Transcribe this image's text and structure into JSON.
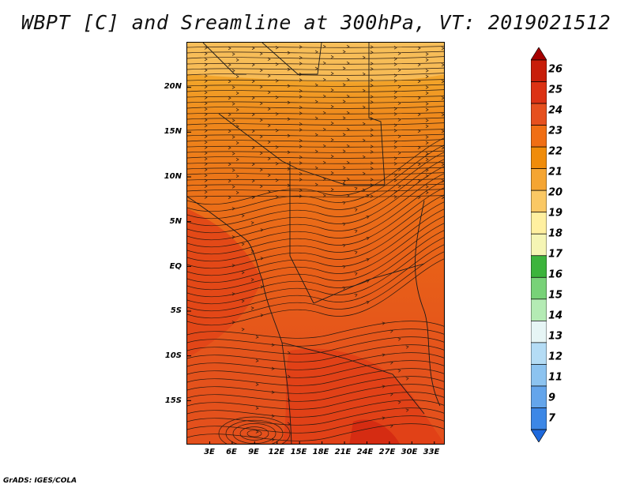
{
  "title": "WBPT [C] and Sreamline at 300hPa, VT: 2019021512",
  "credit": "GrADS: IGES/COLA",
  "map": {
    "lat_ticks": [
      "20N",
      "15N",
      "10N",
      "5N",
      "EQ",
      "5S",
      "10S",
      "15S"
    ],
    "lat_values": [
      20,
      15,
      10,
      5,
      0,
      -5,
      -10,
      -15
    ],
    "lon_ticks": [
      "3E",
      "6E",
      "9E",
      "12E",
      "15E",
      "18E",
      "21E",
      "24E",
      "27E",
      "30E",
      "33E"
    ],
    "lon_values": [
      3,
      6,
      9,
      12,
      15,
      18,
      21,
      24,
      27,
      30,
      33
    ],
    "lat_range": [
      -20,
      25
    ],
    "lon_range": [
      0,
      34.5
    ]
  },
  "colorbar": {
    "levels": [
      "26",
      "25",
      "24",
      "23",
      "22",
      "21",
      "20",
      "19",
      "18",
      "17",
      "16",
      "15",
      "14",
      "13",
      "12",
      "11",
      "9",
      "7"
    ],
    "colors": [
      "#a50000",
      "#c81e0a",
      "#dc3214",
      "#e6501e",
      "#f06e14",
      "#f08c0a",
      "#f5a532",
      "#fac864",
      "#fff0a0",
      "#f5f5b4",
      "#3cb43c",
      "#78d278",
      "#b4ebb4",
      "#e6f5f5",
      "#b4dcf5",
      "#8cc3f0",
      "#64a5eb",
      "#3c87e6",
      "#1e69dc"
    ]
  }
}
